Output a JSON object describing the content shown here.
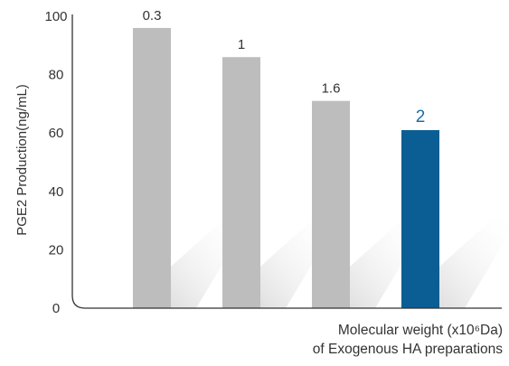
{
  "chart_data": {
    "type": "bar",
    "categories": [
      "0.3",
      "1",
      "1.6",
      "2"
    ],
    "values": [
      96,
      86,
      71,
      61
    ],
    "value_labels": [
      "0.3",
      "1",
      "1.6",
      "2"
    ],
    "ylabel": "PGE2 Production(ng/mL)",
    "xlabel_line1": "Molecular weight (x10⁶Da)",
    "xlabel_line2": "of Exogenous HA preparations",
    "ylim": [
      0,
      100
    ],
    "yticks": [
      "0",
      "20",
      "40",
      "60",
      "80",
      "100"
    ],
    "grid": false,
    "highlight_index": 3,
    "colors": {
      "bar": "#bdbdbd",
      "highlight": "#0a5e94",
      "highlight_text": "#1a6ea8",
      "axis": "#333333",
      "shadow": "#e9e9e9"
    }
  }
}
